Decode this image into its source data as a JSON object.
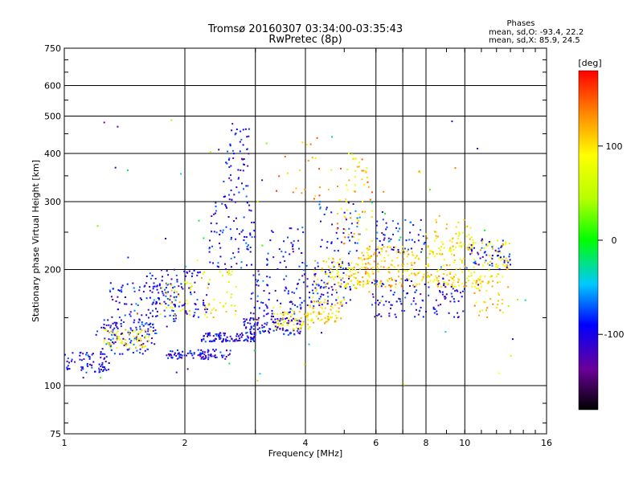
{
  "chart_data": {
    "type": "scatter",
    "title": "Tromsø 20160307 03:34:00-03:35:43",
    "subtitle": "RwPretec (8p)",
    "xlabel": "Frequency [MHz]",
    "ylabel": "Stationary phase Virtual Height [km]",
    "x_scale": "log",
    "y_scale": "log",
    "xlim": [
      1,
      16
    ],
    "ylim": [
      75,
      750
    ],
    "x_ticks": [
      1,
      2,
      4,
      6,
      8,
      10,
      16
    ],
    "x_tick_labels": [
      "1",
      "2",
      "4",
      "6",
      "8",
      "10",
      "16"
    ],
    "x_grid": [
      2,
      3,
      4,
      6,
      7,
      8,
      10
    ],
    "y_ticks": [
      75,
      100,
      200,
      300,
      400,
      500,
      600,
      750
    ],
    "y_tick_labels": [
      "75",
      "100",
      "200",
      "300",
      "400",
      "500",
      "600",
      "750"
    ],
    "y_grid": [
      100,
      200,
      300,
      400,
      500,
      600
    ],
    "grid": true,
    "stats": {
      "heading": "Phases",
      "line_o": "mean, sd,O: -93.4, 22.2",
      "line_x": "mean, sd,X: 85.9, 24.5"
    },
    "colorbar": {
      "label": "[deg]",
      "range": [
        -180,
        180
      ],
      "ticks": [
        100,
        0,
        -100
      ],
      "tick_labels": [
        "100",
        "0",
        "-100"
      ]
    },
    "point_clusters": [
      {
        "x": [
          1.0,
          1.3
        ],
        "y": [
          108,
          122
        ],
        "phase": -100,
        "count": 70
      },
      {
        "x": [
          1.2,
          1.7
        ],
        "y": [
          120,
          148
        ],
        "phase": -95,
        "count": 110
      },
      {
        "x": [
          1.25,
          1.65
        ],
        "y": [
          125,
          140
        ],
        "phase": 90,
        "count": 60
      },
      {
        "x": [
          1.3,
          1.9
        ],
        "y": [
          140,
          185
        ],
        "phase": -90,
        "count": 110
      },
      {
        "x": [
          1.6,
          2.3
        ],
        "y": [
          150,
          200
        ],
        "phase": -100,
        "count": 90
      },
      {
        "x": [
          1.7,
          2.1
        ],
        "y": [
          150,
          190
        ],
        "phase": 85,
        "count": 30
      },
      {
        "x": [
          1.8,
          2.6
        ],
        "y": [
          117,
          124
        ],
        "phase": -100,
        "count": 90
      },
      {
        "x": [
          2.2,
          3.0
        ],
        "y": [
          130,
          137
        ],
        "phase": -100,
        "count": 100
      },
      {
        "x": [
          2.3,
          3.0
        ],
        "y": [
          200,
          300
        ],
        "phase": -95,
        "count": 80
      },
      {
        "x": [
          2.5,
          2.9
        ],
        "y": [
          300,
          480
        ],
        "phase": -100,
        "count": 60
      },
      {
        "x": [
          2.2,
          2.7
        ],
        "y": [
          150,
          200
        ],
        "phase": 90,
        "count": 40
      },
      {
        "x": [
          2.8,
          3.9
        ],
        "y": [
          135,
          150
        ],
        "phase": -100,
        "count": 110
      },
      {
        "x": [
          2.9,
          4.0
        ],
        "y": [
          150,
          195
        ],
        "phase": -90,
        "count": 70
      },
      {
        "x": [
          3.2,
          4.0
        ],
        "y": [
          200,
          260
        ],
        "phase": -95,
        "count": 35
      },
      {
        "x": [
          3.3,
          4.2
        ],
        "y": [
          140,
          160
        ],
        "phase": 95,
        "count": 60
      },
      {
        "x": [
          3.9,
          5.2
        ],
        "y": [
          160,
          210
        ],
        "phase": -95,
        "count": 90
      },
      {
        "x": [
          4.0,
          5.0
        ],
        "y": [
          145,
          170
        ],
        "phase": 100,
        "count": 70
      },
      {
        "x": [
          4.2,
          5.8
        ],
        "y": [
          175,
          215
        ],
        "phase": 95,
        "count": 100
      },
      {
        "x": [
          4.3,
          5.5
        ],
        "y": [
          220,
          300
        ],
        "phase": -90,
        "count": 45
      },
      {
        "x": [
          4.8,
          5.9
        ],
        "y": [
          230,
          330
        ],
        "phase": 115,
        "count": 35
      },
      {
        "x": [
          5.0,
          5.8
        ],
        "y": [
          300,
          400
        ],
        "phase": 100,
        "count": 25
      },
      {
        "x": [
          5.4,
          7.0
        ],
        "y": [
          180,
          230
        ],
        "phase": 110,
        "count": 110
      },
      {
        "x": [
          5.8,
          7.5
        ],
        "y": [
          150,
          190
        ],
        "phase": -95,
        "count": 55
      },
      {
        "x": [
          6.0,
          8.0
        ],
        "y": [
          220,
          270
        ],
        "phase": -90,
        "count": 55
      },
      {
        "x": [
          7.0,
          9.5
        ],
        "y": [
          180,
          230
        ],
        "phase": 100,
        "count": 120
      },
      {
        "x": [
          7.5,
          10.0
        ],
        "y": [
          150,
          185
        ],
        "phase": -100,
        "count": 60
      },
      {
        "x": [
          8.0,
          10.5
        ],
        "y": [
          220,
          270
        ],
        "phase": 95,
        "count": 45
      },
      {
        "x": [
          9.5,
          13.0
        ],
        "y": [
          180,
          240
        ],
        "phase": 95,
        "count": 120
      },
      {
        "x": [
          10.0,
          13.0
        ],
        "y": [
          200,
          240
        ],
        "phase": -95,
        "count": 50
      },
      {
        "x": [
          10.5,
          12.8
        ],
        "y": [
          150,
          190
        ],
        "phase": 110,
        "count": 30
      },
      {
        "x": [
          3.3,
          5.8
        ],
        "y": [
          300,
          440
        ],
        "phase": 130,
        "count": 25
      },
      {
        "x": [
          1.1,
          14.5
        ],
        "y": [
          100,
          560
        ],
        "phase": 0,
        "count": 80
      }
    ]
  }
}
